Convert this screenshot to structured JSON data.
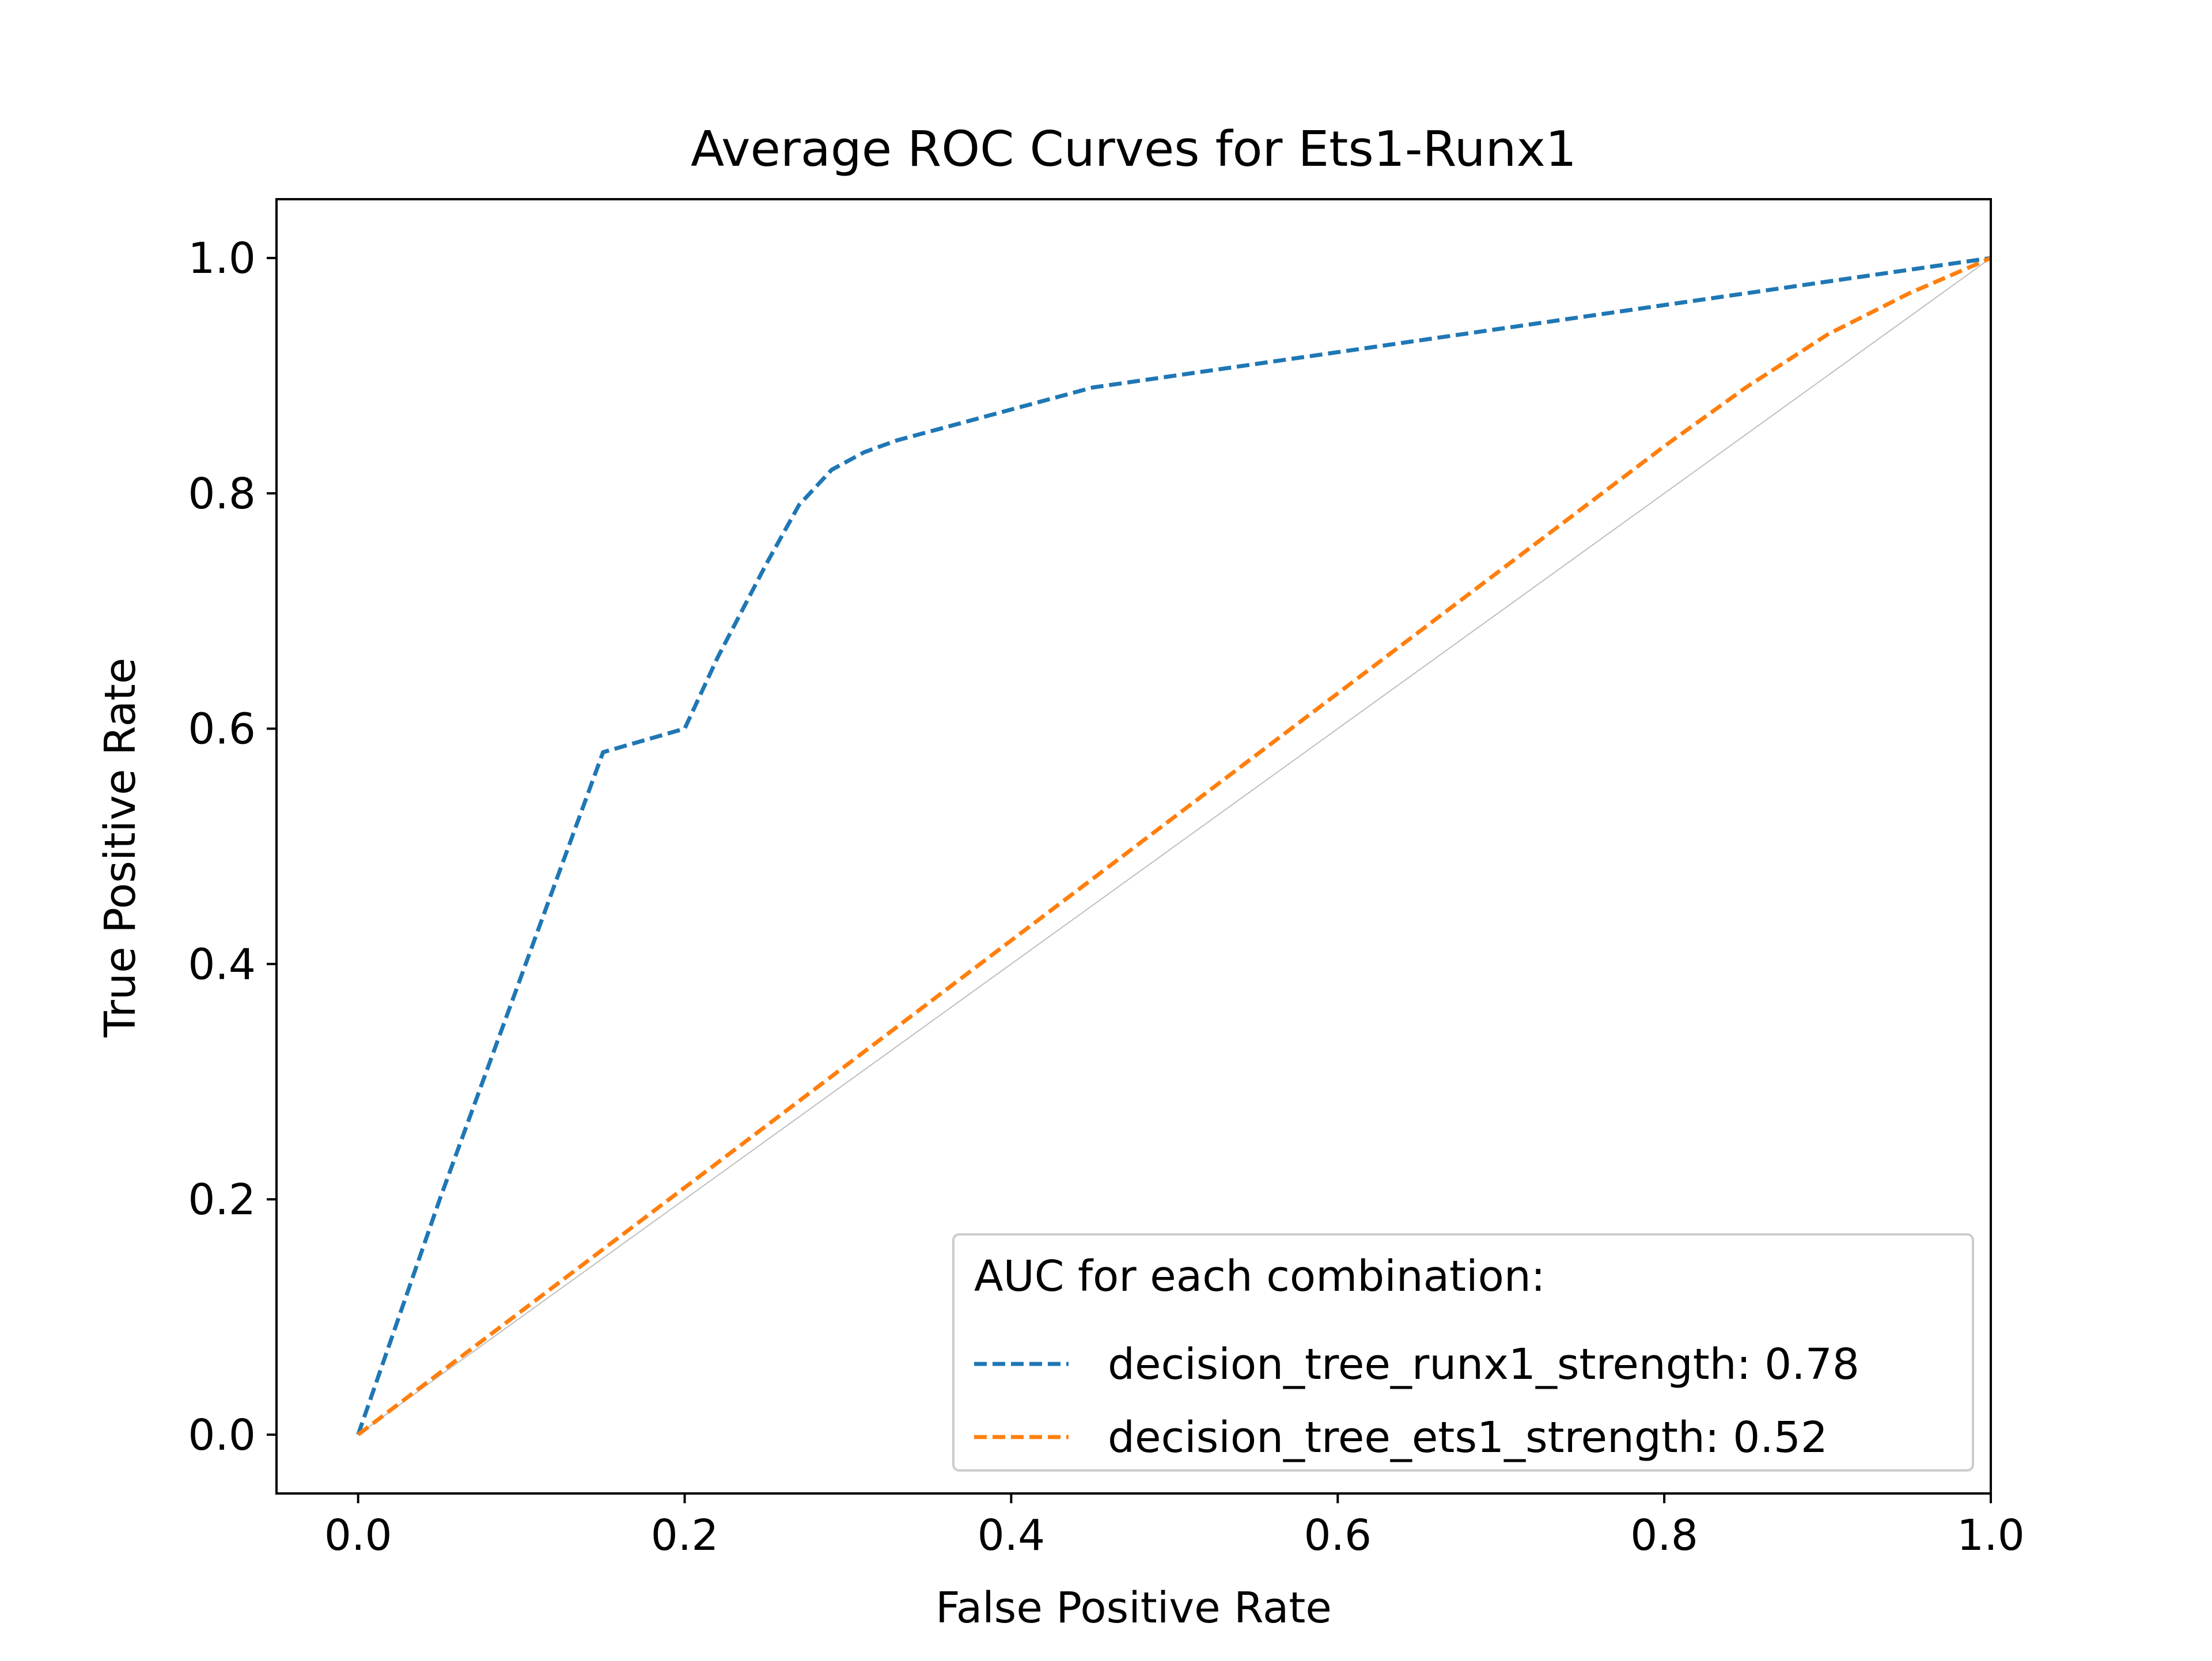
{
  "chart_data": {
    "type": "line",
    "title": "Average ROC Curves for Ets1-Runx1",
    "xlabel": "False Positive Rate",
    "ylabel": "True Positive Rate",
    "xlim": [
      -0.05,
      1.0
    ],
    "ylim": [
      -0.05,
      1.05
    ],
    "xticks": [
      {
        "value": 0.0,
        "label": "0.0"
      },
      {
        "value": 0.2,
        "label": "0.2"
      },
      {
        "value": 0.4,
        "label": "0.4"
      },
      {
        "value": 0.6,
        "label": "0.6"
      },
      {
        "value": 0.8,
        "label": "0.8"
      },
      {
        "value": 1.0,
        "label": "1.0"
      }
    ],
    "yticks": [
      {
        "value": 0.0,
        "label": "0.0"
      },
      {
        "value": 0.2,
        "label": "0.2"
      },
      {
        "value": 0.4,
        "label": "0.4"
      },
      {
        "value": 0.6,
        "label": "0.6"
      },
      {
        "value": 0.8,
        "label": "0.8"
      },
      {
        "value": 1.0,
        "label": "1.0"
      }
    ],
    "grid": false,
    "legend": {
      "title": "AUC for each combination:",
      "placement": "lower-right"
    },
    "reference_line": {
      "x": [
        0.0,
        1.0
      ],
      "y": [
        0.0,
        1.0
      ],
      "color": "#bfbfbf"
    },
    "series": [
      {
        "name": "decision_tree_runx1_strength: 0.78",
        "color": "#1f77b4",
        "style": "dashed",
        "x": [
          0.0,
          0.05,
          0.1,
          0.15,
          0.2,
          0.22,
          0.25,
          0.27,
          0.29,
          0.31,
          0.33,
          0.37,
          0.45,
          0.6,
          0.8,
          1.0
        ],
        "y": [
          0.0,
          0.2,
          0.39,
          0.58,
          0.6,
          0.66,
          0.74,
          0.79,
          0.82,
          0.835,
          0.845,
          0.86,
          0.89,
          0.92,
          0.96,
          1.0
        ]
      },
      {
        "name": "decision_tree_ets1_strength: 0.52",
        "color": "#ff7f0e",
        "style": "dashed",
        "x": [
          0.0,
          0.2,
          0.4,
          0.6,
          0.8,
          0.85,
          0.9,
          0.95,
          1.0
        ],
        "y": [
          0.0,
          0.21,
          0.42,
          0.63,
          0.84,
          0.89,
          0.935,
          0.97,
          1.0
        ]
      }
    ]
  }
}
